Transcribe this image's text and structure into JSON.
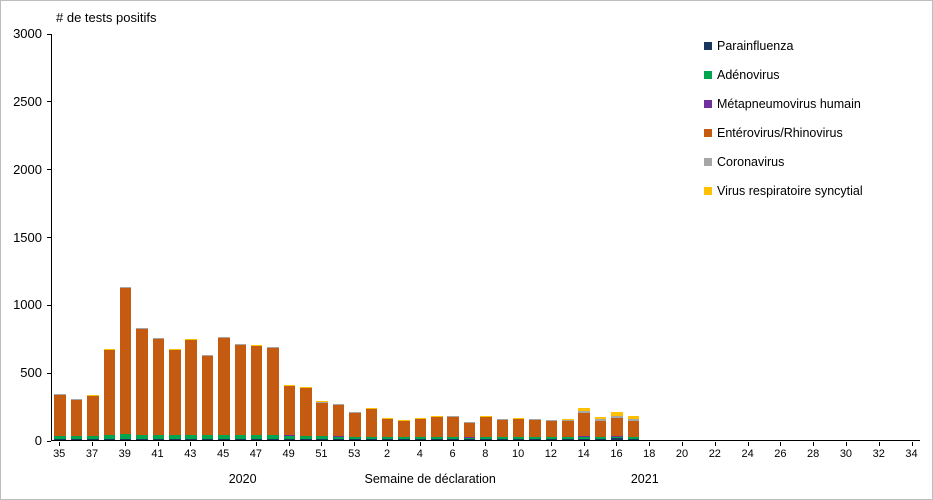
{
  "chart_data": {
    "type": "bar",
    "stacked": true,
    "title": "# de tests positifs",
    "xlabel": "Semaine de déclaration",
    "ylim": [
      0,
      3000
    ],
    "yticks": [
      0,
      500,
      1000,
      1500,
      2000,
      2500,
      3000
    ],
    "grid": false,
    "legend_position": "right",
    "year_labels": [
      {
        "label": "2020"
      },
      {
        "label": "2021"
      }
    ],
    "weeks": [
      35,
      36,
      37,
      38,
      39,
      40,
      41,
      42,
      43,
      44,
      45,
      46,
      47,
      48,
      49,
      50,
      51,
      52,
      53,
      1,
      2,
      3,
      4,
      5,
      6,
      7,
      8,
      9,
      10,
      11,
      12,
      13,
      14,
      15,
      16,
      17,
      18,
      19,
      20,
      21,
      22,
      23,
      24,
      25,
      26,
      27,
      28,
      29,
      30,
      31,
      32,
      33,
      34
    ],
    "x_labels": [
      "35",
      "",
      "37",
      "",
      "39",
      "",
      "41",
      "",
      "43",
      "",
      "45",
      "",
      "47",
      "",
      "49",
      "",
      "51",
      "",
      "53",
      "",
      "2",
      "",
      "4",
      "",
      "6",
      "",
      "8",
      "",
      "10",
      "",
      "12",
      "",
      "14",
      "",
      "16",
      "",
      "18",
      "",
      "20",
      "",
      "22",
      "",
      "24",
      "",
      "26",
      "",
      "28",
      "",
      "30",
      "",
      "32",
      "",
      "34"
    ],
    "series": [
      {
        "name": "Parainfluenza",
        "color": "#17375E",
        "values": [
          5,
          5,
          5,
          5,
          8,
          6,
          6,
          6,
          6,
          6,
          6,
          6,
          6,
          6,
          5,
          5,
          5,
          5,
          5,
          5,
          5,
          5,
          5,
          6,
          6,
          5,
          6,
          6,
          8,
          8,
          8,
          8,
          10,
          10,
          12,
          10,
          0,
          0,
          0,
          0,
          0,
          0,
          0,
          0,
          0,
          0,
          0,
          0,
          0,
          0,
          0,
          0,
          0
        ]
      },
      {
        "name": "Adénovirus",
        "color": "#00A550",
        "values": [
          25,
          25,
          25,
          30,
          35,
          30,
          30,
          28,
          30,
          28,
          30,
          30,
          30,
          30,
          28,
          25,
          22,
          20,
          18,
          18,
          15,
          14,
          15,
          15,
          15,
          12,
          14,
          13,
          13,
          12,
          12,
          12,
          14,
          12,
          13,
          12,
          0,
          0,
          0,
          0,
          0,
          0,
          0,
          0,
          0,
          0,
          0,
          0,
          0,
          0,
          0,
          0,
          0
        ]
      },
      {
        "name": "Métapneumovirus humain",
        "color": "#7030A0",
        "values": [
          3,
          3,
          3,
          3,
          4,
          4,
          4,
          3,
          3,
          3,
          3,
          3,
          3,
          3,
          3,
          3,
          3,
          3,
          3,
          3,
          2,
          2,
          2,
          2,
          2,
          2,
          2,
          2,
          2,
          2,
          2,
          2,
          3,
          2,
          3,
          2,
          0,
          0,
          0,
          0,
          0,
          0,
          0,
          0,
          0,
          0,
          0,
          0,
          0,
          0,
          0,
          0,
          0
        ]
      },
      {
        "name": "Entérovirus/Rhinovirus",
        "color": "#C55A11",
        "values": [
          300,
          265,
          290,
          625,
          1075,
          782,
          707,
          625,
          698,
          585,
          715,
          663,
          653,
          643,
          361,
          349,
          247,
          229,
          176,
          201,
          130,
          116,
          130,
          144,
          149,
          108,
          145,
          126,
          129,
          125,
          120,
          120,
          175,
          120,
          135,
          118,
          0,
          0,
          0,
          0,
          0,
          0,
          0,
          0,
          0,
          0,
          0,
          0,
          0,
          0,
          0,
          0,
          0
        ]
      },
      {
        "name": "Coronavirus",
        "color": "#A6A6A6",
        "values": [
          5,
          5,
          5,
          5,
          6,
          6,
          6,
          6,
          6,
          6,
          6,
          6,
          6,
          6,
          6,
          6,
          6,
          6,
          6,
          6,
          6,
          6,
          6,
          6,
          6,
          6,
          6,
          6,
          6,
          6,
          6,
          6,
          15,
          10,
          14,
          11,
          0,
          0,
          0,
          0,
          0,
          0,
          0,
          0,
          0,
          0,
          0,
          0,
          0,
          0,
          0,
          0,
          0
        ]
      },
      {
        "name": "Virus respiratoire syncytial",
        "color": "#FFC000",
        "values": [
          2,
          2,
          2,
          2,
          2,
          2,
          2,
          2,
          2,
          2,
          2,
          2,
          2,
          2,
          2,
          2,
          2,
          2,
          2,
          2,
          2,
          2,
          2,
          2,
          2,
          2,
          2,
          2,
          2,
          2,
          2,
          5,
          23,
          16,
          28,
          22,
          0,
          0,
          0,
          0,
          0,
          0,
          0,
          0,
          0,
          0,
          0,
          0,
          0,
          0,
          0,
          0,
          0
        ]
      }
    ]
  }
}
